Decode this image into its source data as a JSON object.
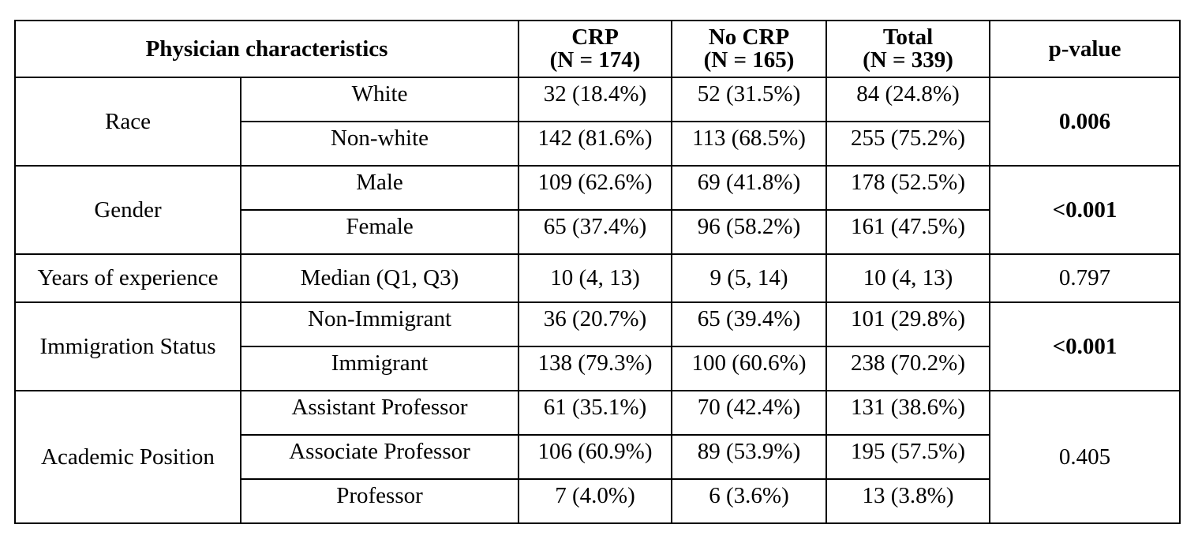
{
  "header": {
    "characteristics": "Physician characteristics",
    "crp_title": "CRP",
    "crp_n": "(N = 174)",
    "nocrp_title": "No CRP",
    "nocrp_n": "(N = 165)",
    "total_title": "Total",
    "total_n": "(N = 339)",
    "pvalue": "p-value"
  },
  "groups": [
    {
      "label": "Race",
      "pvalue": "0.006",
      "pvalue_bold": true,
      "rows": [
        {
          "sub": "White",
          "crp": "32 (18.4%)",
          "nocrp": "52 (31.5%)",
          "total": "84 (24.8%)"
        },
        {
          "sub": "Non-white",
          "crp": "142 (81.6%)",
          "nocrp": "113 (68.5%)",
          "total": "255 (75.2%)"
        }
      ]
    },
    {
      "label": "Gender",
      "pvalue": "<0.001",
      "pvalue_bold": true,
      "rows": [
        {
          "sub": "Male",
          "crp": "109 (62.6%)",
          "nocrp": "69 (41.8%)",
          "total": "178 (52.5%)"
        },
        {
          "sub": "Female",
          "crp": "65 (37.4%)",
          "nocrp": "96 (58.2%)",
          "total": "161 (47.5%)"
        }
      ]
    },
    {
      "label": "Years of experience",
      "pvalue": "0.797",
      "pvalue_bold": false,
      "rows": [
        {
          "sub": "Median (Q1, Q3)",
          "crp": "10 (4, 13)",
          "nocrp": "9 (5, 14)",
          "total": "10 (4, 13)"
        }
      ]
    },
    {
      "label": "Immigration Status",
      "pvalue": "<0.001",
      "pvalue_bold": true,
      "rows": [
        {
          "sub": "Non-Immigrant",
          "crp": "36 (20.7%)",
          "nocrp": "65 (39.4%)",
          "total": "101 (29.8%)"
        },
        {
          "sub": "Immigrant",
          "crp": "138 (79.3%)",
          "nocrp": "100 (60.6%)",
          "total": "238 (70.2%)"
        }
      ]
    },
    {
      "label": "Academic Position",
      "pvalue": "0.405",
      "pvalue_bold": false,
      "rows": [
        {
          "sub": "Assistant Professor",
          "crp": "61 (35.1%)",
          "nocrp": "70 (42.4%)",
          "total": "131 (38.6%)"
        },
        {
          "sub": "Associate Professor",
          "crp": "106 (60.9%)",
          "nocrp": "89 (53.9%)",
          "total": "195 (57.5%)"
        },
        {
          "sub": "Professor",
          "crp": "7 (4.0%)",
          "nocrp": "6 (3.6%)",
          "total": "13 (3.8%)"
        }
      ]
    }
  ]
}
